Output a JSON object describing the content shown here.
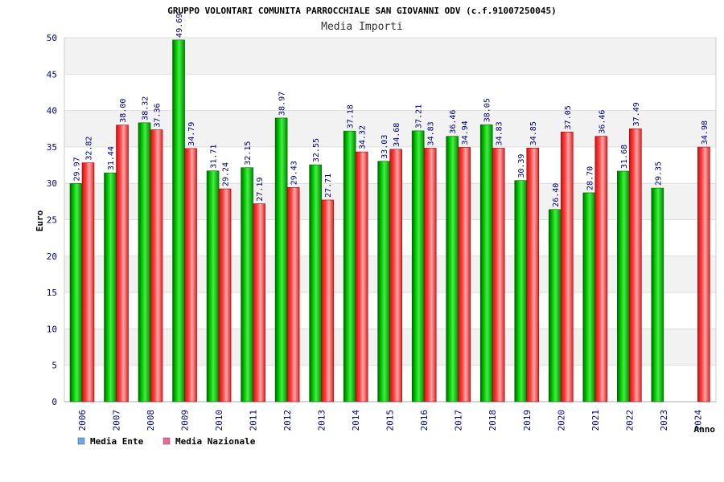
{
  "chart_data": {
    "type": "bar",
    "title": "GRUPPO VOLONTARI COMUNITA PARROCCHIALE SAN GIOVANNI ODV (c.f.91007250045)",
    "subtitle": "Media Importi",
    "xlabel": "Anno",
    "ylabel": "Euro",
    "ylim": [
      0,
      50
    ],
    "yticks": [
      0,
      5,
      10,
      15,
      20,
      25,
      30,
      35,
      40,
      45,
      50
    ],
    "grid": true,
    "legend_position": "bottom-left",
    "categories": [
      "2006",
      "2007",
      "2008",
      "2009",
      "2010",
      "2011",
      "2012",
      "2013",
      "2014",
      "2015",
      "2016",
      "2017",
      "2018",
      "2019",
      "2020",
      "2021",
      "2022",
      "2023",
      "2024"
    ],
    "series": [
      {
        "name": "Media Ente",
        "color": "#00b000",
        "legend_color": "#66aaee",
        "values": [
          29.97,
          31.44,
          38.32,
          49.69,
          31.71,
          32.15,
          38.97,
          32.55,
          37.18,
          33.03,
          37.21,
          36.46,
          38.05,
          30.39,
          26.4,
          28.7,
          31.68,
          29.35,
          null
        ],
        "labels": [
          "29.97",
          "31.44",
          "38.32",
          "49.69",
          "31.71",
          "32.15",
          "38.97",
          "32.55",
          "37.18",
          "33.03",
          "37.21",
          "36.46",
          "38.05",
          "30.39",
          "26.40",
          "28.70",
          "31.68",
          "29.35",
          ""
        ]
      },
      {
        "name": "Media Nazionale",
        "color": "#ee2222",
        "legend_color": "#ee6699",
        "values": [
          32.82,
          38.0,
          37.36,
          34.79,
          29.24,
          27.19,
          29.43,
          27.71,
          34.32,
          34.68,
          34.83,
          34.94,
          34.83,
          34.85,
          37.05,
          36.46,
          37.49,
          null,
          34.98
        ],
        "labels": [
          "32.82",
          "38.00",
          "37.36",
          "34.79",
          "29.24",
          "27.19",
          "29.43",
          "27.71",
          "34.32",
          "34.68",
          "34.83",
          "34.94",
          "34.83",
          "34.85",
          "37.05",
          "36.46",
          "37.49",
          "",
          "34.98"
        ]
      }
    ]
  }
}
